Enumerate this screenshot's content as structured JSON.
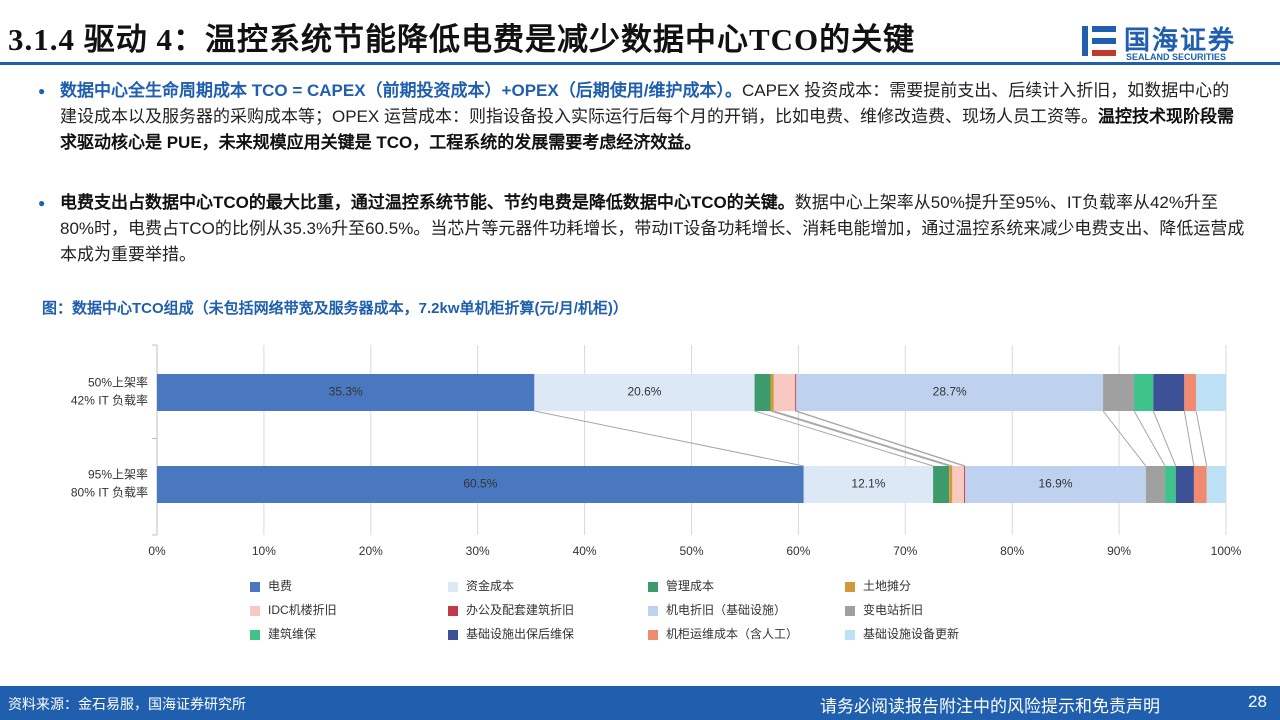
{
  "header": {
    "title": "3.1.4 驱动 4：温控系统节能降低电费是减少数据中心TCO的关键",
    "logo": "国海证券",
    "logo_sub": "SEALAND SECURITIES"
  },
  "bullets": [
    [
      "数据中心全生命周期成本 TCO = CAPEX（前期投资成本）+OPEX（后期使用/维护成本）。",
      "CAPEX 投资成本：需要提前支出、后续计入折旧，如数据中心的建设成本以及服务器的采购成本等；OPEX 运营成本：则指设备投入实际运行后每个月的开销，比如电费、维修改造费、现场人员工资等。",
      "温控技术现阶段需求驱动核心是 PUE，未来规模应用关键是 TCO，工程系统的发展需要考虑经济效益。"
    ],
    [
      "电费支出占数据中心TCO的最大比重，通过温控系统节能、节约电费是降低数据中心TCO的关键。",
      "数据中心上架率从50%提升至95%、IT负载率从42%升至80%时，电费占TCO的比例从35.3%升至60.5%。当芯片等元器件功耗增长，带动IT设备功耗增长、消耗电能增加，通过温控系统来减少电费支出、降低运营成本成为重要举措。"
    ]
  ],
  "chart_data": {
    "type": "stacked-bar-horizontal",
    "title": "图：数据中心TCO组成（未包括网络带宽及服务器成本，7.2kw单机柜折算(元/月/机柜)）",
    "categories": [
      [
        "50%上架率",
        "42% IT 负载率"
      ],
      [
        "95%上架率",
        "80% IT 负载率"
      ]
    ],
    "xlim": [
      0,
      100
    ],
    "xticks": [
      {
        "value": 0,
        "label": "0%"
      },
      {
        "value": 10,
        "label": "10%"
      },
      {
        "value": 20,
        "label": "20%"
      },
      {
        "value": 30,
        "label": "30%"
      },
      {
        "value": 40,
        "label": "40%"
      },
      {
        "value": 50,
        "label": "50%"
      },
      {
        "value": 60,
        "label": "60%"
      },
      {
        "value": 70,
        "label": "70%"
      },
      {
        "value": 80,
        "label": "80%"
      },
      {
        "value": 90,
        "label": "90%"
      },
      {
        "value": 100,
        "label": "100%"
      }
    ],
    "grid": true,
    "series": [
      {
        "name": "电费",
        "color": "#4a78c0",
        "values": [
          35.3,
          60.5
        ],
        "value_labels": [
          "35.3%",
          "60.5%"
        ]
      },
      {
        "name": "资金成本",
        "color": "#dde8f6",
        "values": [
          20.6,
          12.1
        ],
        "value_labels": [
          "20.6%",
          "12.1%"
        ]
      },
      {
        "name": "管理成本",
        "color": "#3d9a6a",
        "values": [
          1.5,
          1.5
        ]
      },
      {
        "name": "土地摊分",
        "color": "#d09a3a",
        "values": [
          0.3,
          0.3
        ]
      },
      {
        "name": "IDC机楼折旧",
        "color": "#f8c9c0",
        "values": [
          2.0,
          1.1
        ]
      },
      {
        "name": "办公及配套建筑折旧",
        "color": "#c0394b",
        "values": [
          0.1,
          0.1
        ]
      },
      {
        "name": "机电折旧（基础设施）",
        "color": "#bed2f0",
        "values": [
          28.7,
          16.9
        ],
        "value_labels": [
          "28.7%",
          "16.9%"
        ]
      },
      {
        "name": "变电站折旧",
        "color": "#a0a0a0",
        "values": [
          2.9,
          1.8
        ]
      },
      {
        "name": "建筑维保",
        "color": "#3ec48a",
        "values": [
          1.8,
          1.0
        ]
      },
      {
        "name": "基础设施出保后维保",
        "color": "#3d5196",
        "values": [
          2.9,
          1.7
        ]
      },
      {
        "name": "机柜运维成本（含人工）",
        "color": "#f08a70",
        "values": [
          1.1,
          1.2
        ]
      },
      {
        "name": "基础设施设备更新",
        "color": "#bde0f5",
        "values": [
          2.8,
          1.8
        ]
      }
    ]
  },
  "footer": {
    "source": "资料来源：金石易服，国海证券研究所",
    "note": "请务必阅读报告附注中的风险提示和免责声明",
    "page": "28"
  }
}
